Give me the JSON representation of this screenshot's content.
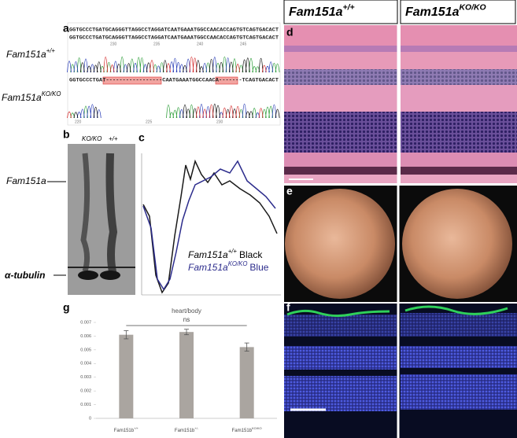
{
  "panel_letters": [
    "a",
    "b",
    "c",
    "d",
    "e",
    "f",
    "g"
  ],
  "panel_a": {
    "sequences": [
      "GGTGCCCTGATGCAGGGTTAGGCCTAGGATCAATGAAATGGCCAACACCAGTGTCAGTGACACT",
      "GGTGCCCTGATGCAGGGTTAGGCCTAGGATCAATGAAATGGCCAACACCAGTGTCAGTGACACT",
      "GGTGCCCTGAT-----------------CAATGAAATGGCCAACA-------TCAGTGACACT"
    ],
    "rows": [
      {
        "gene": "Fam151a",
        "sup": "+/+"
      },
      {
        "gene": "Fam151a",
        "sup": "KO/KO"
      }
    ],
    "positions_top": [
      230,
      235,
      240,
      245
    ],
    "positions_bottom": [
      220,
      225,
      230
    ]
  },
  "panel_b": {
    "lanes": [
      "KO/KO",
      "+/+"
    ],
    "bands": [
      "Fam151a",
      "α-tubulin"
    ]
  },
  "panel_c": {
    "legend": [
      {
        "gene": "Fam151a",
        "sup": "+/+",
        "trace": "Black"
      },
      {
        "gene": "Fam151a",
        "sup": "KO/KO",
        "trace": "Blue"
      }
    ]
  },
  "panel_d": {
    "columns": [
      {
        "gene": "Fam151a",
        "sup": "+/+"
      },
      {
        "gene": "Fam151a",
        "sup": "KO/KO"
      }
    ]
  },
  "panel_g": {
    "type": "bar",
    "title": "heart/body",
    "annotation": "ns",
    "categories": [
      {
        "gene": "Fam151b",
        "sup": "+/+"
      },
      {
        "gene": "Fam151b",
        "sup": "+/-"
      },
      {
        "gene": "Fam151b",
        "sup": "KO/KO"
      }
    ],
    "values": [
      0.0061,
      0.0063,
      0.0052
    ],
    "errors": [
      0.0003,
      0.0002,
      0.0003
    ],
    "color": "#aaa5a0",
    "ylim": [
      0,
      0.007
    ],
    "yticks": [
      0,
      0.001,
      0.002,
      0.003,
      0.004,
      0.005,
      0.006,
      0.007
    ]
  }
}
